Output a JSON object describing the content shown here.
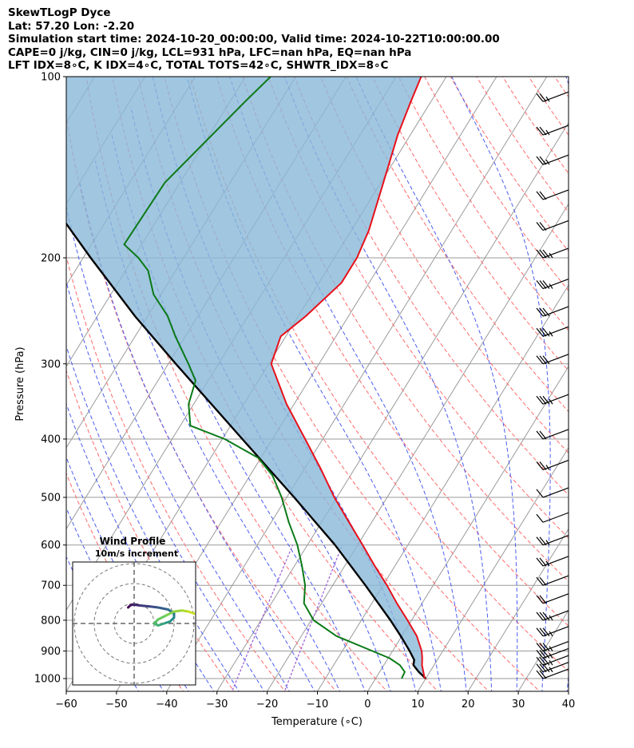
{
  "header": {
    "line1": "SkewTLogP Dyce",
    "line2": "Lat: 57.20   Lon: -2.20",
    "line3": "Simulation start time: 2024-10-20_00:00:00, Valid time: 2024-10-22T10:00:00.00",
    "line4": "CAPE=0 j/kg, CIN=0 j/kg, LCL=931 hPa, LFC=nan hPa, EQ=nan hPa",
    "line5": "LFT IDX=8∘C, K IDX=4∘C, TOTAL TOTS=42∘C, SHWTR_IDX=8∘C"
  },
  "colors": {
    "temperature": "#e8101a",
    "dewpoint": "#0b7a17",
    "parcel": "#000000",
    "cape_fill": "#8ab8d8",
    "dry_adiabat": "#ff6a6a",
    "moist_adiabat": "#4a5cf0",
    "mixing_ratio": "#9a5bd6",
    "isotherm": "#9a9a9a"
  },
  "chart_data": [
    {
      "type": "line",
      "subtype": "skew-t log-p",
      "xlabel": "Temperature (∘C)",
      "ylabel": "Pressure (hPa)",
      "xlim": [
        -60,
        40
      ],
      "ylim": [
        1050,
        100
      ],
      "yscale": "log",
      "xticks": [
        "−60",
        "−50",
        "−40",
        "−30",
        "−20",
        "−10",
        "0",
        "10",
        "20",
        "30",
        "40"
      ],
      "yticks": [
        "100",
        "200",
        "300",
        "400",
        "500",
        "600",
        "700",
        "800",
        "900",
        "1000"
      ],
      "grid": true,
      "series": [
        {
          "role": "temperature",
          "pressure": [
            1000,
            950,
            925,
            900,
            850,
            800,
            750,
            700,
            650,
            600,
            550,
            500,
            450,
            400,
            350,
            300,
            270,
            250,
            220,
            200,
            180,
            150,
            125,
            110,
            100
          ],
          "values": [
            9.8,
            7.6,
            6.8,
            5.8,
            3.0,
            -0.8,
            -5.0,
            -9.2,
            -14.0,
            -19.0,
            -24.5,
            -30.5,
            -36.5,
            -43.5,
            -51.5,
            -59.5,
            -61.0,
            -58.5,
            -55.5,
            -55.5,
            -56.5,
            -59.5,
            -62.5,
            -64.0,
            -65.0
          ]
        },
        {
          "role": "dewpoint",
          "pressure": [
            1000,
            975,
            950,
            925,
            900,
            850,
            800,
            750,
            700,
            650,
            600,
            550,
            500,
            460,
            430,
            400,
            380,
            350,
            320,
            300,
            270,
            250,
            230,
            210,
            200,
            190,
            150,
            110,
            100
          ],
          "values": [
            5.2,
            5.0,
            3.2,
            0.3,
            -4.0,
            -13.0,
            -19.5,
            -23.5,
            -25.5,
            -28.5,
            -32.0,
            -36.5,
            -41.0,
            -45.5,
            -50.5,
            -59.5,
            -68.0,
            -71.0,
            -72.5,
            -76.0,
            -82.0,
            -86.0,
            -91.5,
            -95.5,
            -99.0,
            -103.5,
            -103.0,
            -97.0,
            -95.0
          ]
        },
        {
          "role": "parcel",
          "pressure": [
            1000,
            975,
            950,
            931,
            900,
            850,
            800,
            700,
            600,
            500,
            400,
            300,
            250,
            200,
            150,
            125,
            100
          ],
          "values": [
            10.0,
            7.8,
            5.9,
            5.4,
            3.4,
            -0.2,
            -4.2,
            -13.5,
            -24.5,
            -38.5,
            -56.0,
            -78.5,
            -92.5,
            -108.5,
            -128.5,
            -140.5,
            -154.0
          ]
        }
      ],
      "wind_barbs": {
        "pressure": [
          1000,
          975,
          950,
          925,
          900,
          850,
          800,
          750,
          700,
          650,
          600,
          550,
          500,
          450,
          400,
          350,
          300,
          270,
          250,
          225,
          200,
          180,
          160,
          140,
          125,
          110
        ],
        "speed_kt": [
          20,
          25,
          25,
          25,
          25,
          25,
          25,
          20,
          20,
          15,
          15,
          10,
          10,
          15,
          20,
          25,
          30,
          35,
          30,
          25,
          25,
          20,
          20,
          15,
          15,
          15
        ]
      }
    },
    {
      "type": "line",
      "subtype": "hodograph",
      "title": "Wind Profile",
      "subtitle": "10m/s increment",
      "rings_ms": [
        10,
        20,
        30
      ],
      "u": [
        -3,
        -2,
        -0.5,
        3,
        8,
        12,
        17,
        20,
        20,
        18,
        15,
        12,
        10,
        12,
        16,
        20,
        24,
        27,
        30
      ],
      "v": [
        8,
        9,
        9.5,
        9,
        8.5,
        8,
        7,
        5,
        3,
        1,
        0,
        -1,
        0,
        2,
        4,
        6,
        6.5,
        6,
        5
      ]
    }
  ]
}
